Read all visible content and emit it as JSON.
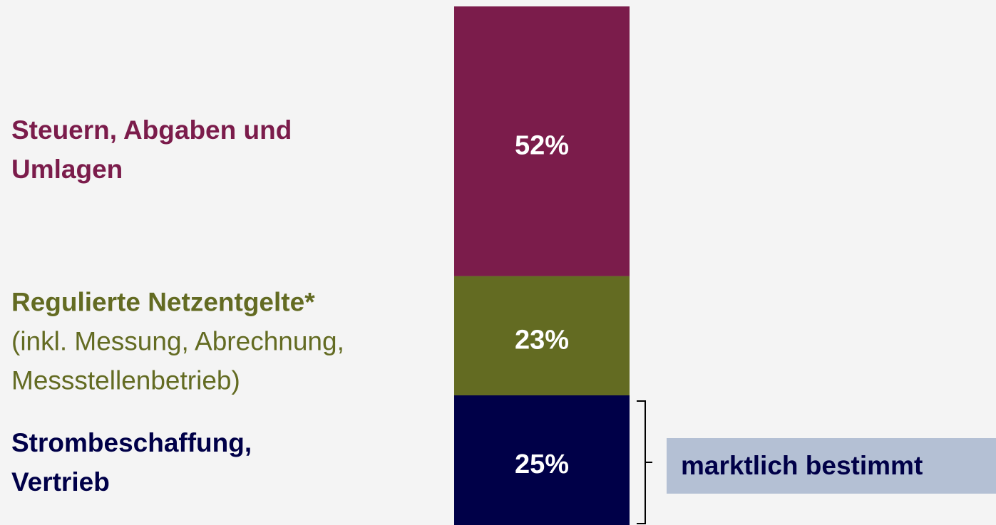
{
  "chart_data": {
    "type": "stacked_bar",
    "series": [
      {
        "name": "Strombeschaffung, Vertrieb",
        "color": "#000048",
        "values": [
          25
        ],
        "value_labels": [
          "25%"
        ]
      },
      {
        "name": "Regulierte Netzentgelte*",
        "description": "(inkl. Messung, Abrechnung, Messstellenbetrieb)",
        "color": "#636b22",
        "values": [
          23
        ],
        "value_labels": [
          "23%"
        ]
      },
      {
        "name": "Steuern, Abgaben und Umlagen",
        "color": "#7b1c4b",
        "values": [
          52
        ],
        "value_labels": [
          "52%"
        ]
      }
    ],
    "annotation": "marktlich bestimmt"
  }
}
